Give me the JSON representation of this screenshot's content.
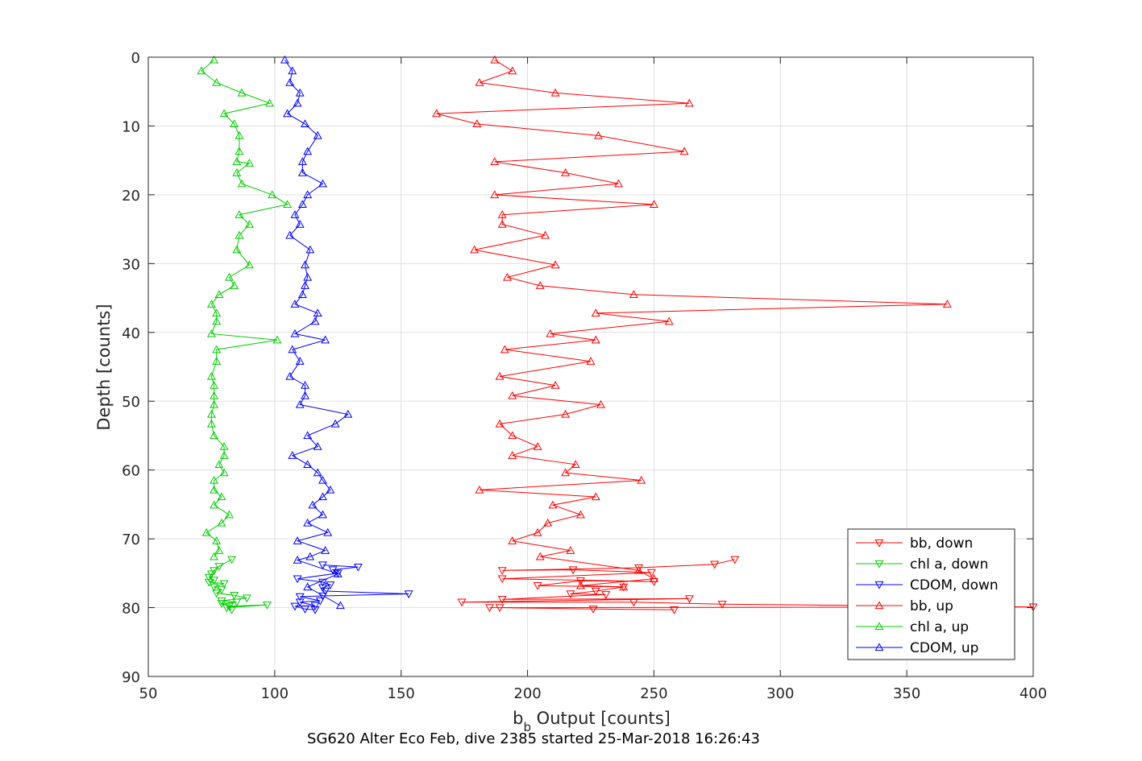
{
  "chart_data": {
    "type": "line",
    "xlabel": "b",
    "xlabel_subscript": "b",
    "xlabel_rest": " Output [counts]",
    "ylabel": "Depth [counts]",
    "caption": "SG620 Alter Eco Feb, dive 2385 started 25-Mar-2018 16:26:43",
    "xlim": [
      50,
      400
    ],
    "ylim": [
      0,
      90
    ],
    "y_reversed": true,
    "grid": true,
    "legend_position": "bottom-right",
    "x_ticks": [
      "50",
      "100",
      "150",
      "200",
      "250",
      "300",
      "350",
      "400"
    ],
    "y_ticks": [
      "0",
      "10",
      "20",
      "30",
      "40",
      "50",
      "60",
      "70",
      "80",
      "90"
    ],
    "series": [
      {
        "name": "bb, down",
        "color": "#ff0000",
        "marker": "triangle-down",
        "points": [
          [
            282,
            73.0
          ],
          [
            274,
            73.7
          ],
          [
            244,
            74.2
          ],
          [
            190,
            74.6
          ],
          [
            218,
            74.5
          ],
          [
            249,
            74.9
          ],
          [
            190,
            75.8
          ],
          [
            250,
            76.2
          ],
          [
            221,
            76.1
          ],
          [
            204,
            76.8
          ],
          [
            238,
            77.0
          ],
          [
            227,
            77.6
          ],
          [
            217,
            78.0
          ],
          [
            231,
            78.1
          ],
          [
            190,
            78.8
          ],
          [
            264,
            78.7
          ],
          [
            174,
            79.2
          ],
          [
            242,
            79.2
          ],
          [
            277,
            79.5
          ],
          [
            400,
            79.9
          ],
          [
            185,
            80.0
          ],
          [
            189,
            80.0
          ],
          [
            226,
            80.2
          ],
          [
            258,
            80.3
          ]
        ]
      },
      {
        "name": "chl a, down",
        "color": "#00cc00",
        "marker": "triangle-down",
        "points": [
          [
            83,
            73.0
          ],
          [
            78,
            74.0
          ],
          [
            76,
            74.6
          ],
          [
            75,
            75.1
          ],
          [
            74,
            75.6
          ],
          [
            76,
            76.0
          ],
          [
            74,
            76.3
          ],
          [
            80,
            76.5
          ],
          [
            76,
            77.0
          ],
          [
            79,
            77.4
          ],
          [
            77,
            77.9
          ],
          [
            84,
            78.2
          ],
          [
            89,
            78.6
          ],
          [
            79,
            79.0
          ],
          [
            85,
            79.2
          ],
          [
            79,
            79.4
          ],
          [
            82,
            79.8
          ],
          [
            97,
            79.6
          ],
          [
            81,
            80.0
          ],
          [
            83,
            80.3
          ]
        ]
      },
      {
        "name": "CDOM, down",
        "color": "#0000ff",
        "marker": "triangle-down",
        "points": [
          [
            119,
            73.8
          ],
          [
            133,
            74.1
          ],
          [
            123,
            74.5
          ],
          [
            125,
            75.0
          ],
          [
            109,
            75.8
          ],
          [
            119,
            76.3
          ],
          [
            122,
            76.7
          ],
          [
            119,
            77.1
          ],
          [
            120,
            77.6
          ],
          [
            153,
            78.0
          ],
          [
            119,
            78.3
          ],
          [
            110,
            78.4
          ],
          [
            118,
            79.0
          ],
          [
            110,
            79.2
          ],
          [
            116,
            79.7
          ],
          [
            108,
            79.8
          ],
          [
            112,
            80.2
          ],
          [
            116,
            80.3
          ]
        ]
      },
      {
        "name": "bb, up",
        "color": "#ff0000",
        "marker": "triangle-up",
        "points": [
          [
            187,
            0.4
          ],
          [
            194,
            2.0
          ],
          [
            181,
            3.7
          ],
          [
            211,
            5.2
          ],
          [
            264,
            6.7
          ],
          [
            164,
            8.2
          ],
          [
            180,
            9.7
          ],
          [
            228,
            11.4
          ],
          [
            262,
            13.7
          ],
          [
            187,
            15.2
          ],
          [
            215,
            16.8
          ],
          [
            236,
            18.4
          ],
          [
            187,
            20.0
          ],
          [
            250,
            21.4
          ],
          [
            190,
            22.9
          ],
          [
            190,
            24.3
          ],
          [
            207,
            25.9
          ],
          [
            179,
            28.0
          ],
          [
            211,
            30.2
          ],
          [
            192,
            32.0
          ],
          [
            205,
            33.2
          ],
          [
            242,
            34.5
          ],
          [
            366,
            35.9
          ],
          [
            227,
            37.2
          ],
          [
            256,
            38.4
          ],
          [
            209,
            40.2
          ],
          [
            227,
            41.1
          ],
          [
            191,
            42.5
          ],
          [
            225,
            44.2
          ],
          [
            189,
            46.4
          ],
          [
            211,
            47.7
          ],
          [
            194,
            49.2
          ],
          [
            229,
            50.5
          ],
          [
            215,
            51.9
          ],
          [
            189,
            53.3
          ],
          [
            194,
            55.0
          ],
          [
            204,
            56.6
          ],
          [
            194,
            57.9
          ],
          [
            219,
            59.2
          ],
          [
            215,
            60.4
          ],
          [
            245,
            61.5
          ],
          [
            181,
            62.9
          ],
          [
            227,
            63.9
          ],
          [
            210,
            65.1
          ],
          [
            221,
            66.5
          ],
          [
            208,
            67.7
          ],
          [
            204,
            69.1
          ],
          [
            194,
            70.3
          ],
          [
            217,
            71.7
          ],
          [
            205,
            72.6
          ],
          [
            244,
            74.6
          ],
          [
            250,
            75.8
          ],
          [
            221,
            76.8
          ],
          [
            238,
            77.0
          ]
        ]
      },
      {
        "name": "chl a, up",
        "color": "#00cc00",
        "marker": "triangle-up",
        "points": [
          [
            76,
            0.4
          ],
          [
            71,
            2.0
          ],
          [
            77,
            3.7
          ],
          [
            87,
            5.2
          ],
          [
            98,
            6.7
          ],
          [
            80,
            8.2
          ],
          [
            84,
            9.7
          ],
          [
            86,
            11.4
          ],
          [
            86,
            13.7
          ],
          [
            85,
            15.2
          ],
          [
            90,
            15.4
          ],
          [
            85,
            16.8
          ],
          [
            87,
            18.4
          ],
          [
            99,
            20.0
          ],
          [
            105,
            21.4
          ],
          [
            86,
            22.9
          ],
          [
            90,
            24.3
          ],
          [
            86,
            25.9
          ],
          [
            85,
            28.0
          ],
          [
            90,
            30.2
          ],
          [
            82,
            32.0
          ],
          [
            84,
            33.2
          ],
          [
            78,
            34.5
          ],
          [
            75,
            35.9
          ],
          [
            77,
            37.2
          ],
          [
            77,
            38.4
          ],
          [
            75,
            40.2
          ],
          [
            101,
            41.1
          ],
          [
            77,
            42.5
          ],
          [
            77,
            44.2
          ],
          [
            75,
            46.4
          ],
          [
            76,
            47.7
          ],
          [
            76,
            49.2
          ],
          [
            76,
            50.5
          ],
          [
            75,
            51.9
          ],
          [
            75,
            53.3
          ],
          [
            76,
            55.0
          ],
          [
            80,
            56.6
          ],
          [
            80,
            57.9
          ],
          [
            78,
            59.2
          ],
          [
            80,
            60.4
          ],
          [
            76,
            61.5
          ],
          [
            76,
            62.9
          ],
          [
            79,
            63.9
          ],
          [
            76,
            65.1
          ],
          [
            82,
            66.5
          ],
          [
            79,
            67.7
          ],
          [
            73,
            69.1
          ],
          [
            77,
            70.3
          ],
          [
            78,
            71.7
          ],
          [
            76,
            72.6
          ]
        ]
      },
      {
        "name": "CDOM, up",
        "color": "#0000ff",
        "marker": "triangle-up",
        "points": [
          [
            104,
            0.4
          ],
          [
            107,
            2.0
          ],
          [
            106,
            3.7
          ],
          [
            110,
            5.2
          ],
          [
            109,
            6.7
          ],
          [
            105,
            8.2
          ],
          [
            112,
            9.7
          ],
          [
            117,
            11.4
          ],
          [
            113,
            13.7
          ],
          [
            111,
            15.2
          ],
          [
            111,
            16.8
          ],
          [
            119,
            18.4
          ],
          [
            113,
            20.0
          ],
          [
            111,
            21.4
          ],
          [
            108,
            22.9
          ],
          [
            110,
            24.3
          ],
          [
            106,
            25.9
          ],
          [
            114,
            28.0
          ],
          [
            112,
            30.2
          ],
          [
            113,
            32.0
          ],
          [
            112,
            33.2
          ],
          [
            111,
            34.5
          ],
          [
            108,
            35.9
          ],
          [
            117,
            37.2
          ],
          [
            116,
            38.4
          ],
          [
            108,
            40.2
          ],
          [
            120,
            41.1
          ],
          [
            107,
            42.5
          ],
          [
            110,
            44.2
          ],
          [
            106,
            46.4
          ],
          [
            112,
            47.7
          ],
          [
            112,
            49.2
          ],
          [
            110,
            50.5
          ],
          [
            129,
            51.9
          ],
          [
            124,
            53.3
          ],
          [
            113,
            55.0
          ],
          [
            117,
            56.6
          ],
          [
            107,
            57.9
          ],
          [
            113,
            59.2
          ],
          [
            117,
            60.4
          ],
          [
            119,
            61.5
          ],
          [
            122,
            62.9
          ],
          [
            119,
            63.9
          ],
          [
            115,
            65.1
          ],
          [
            119,
            66.5
          ],
          [
            113,
            67.7
          ],
          [
            121,
            69.1
          ],
          [
            109,
            70.3
          ],
          [
            120,
            71.7
          ],
          [
            114,
            72.6
          ],
          [
            109,
            73.1
          ],
          [
            125,
            75.1
          ],
          [
            113,
            77.0
          ],
          [
            126,
            79.7
          ]
        ]
      }
    ]
  }
}
